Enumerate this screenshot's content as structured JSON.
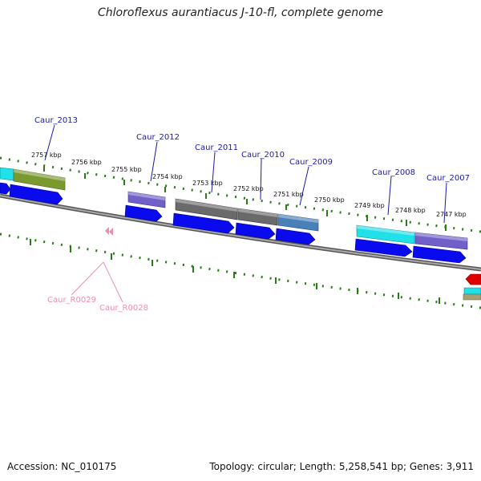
{
  "title": "Chloroflexus aurantiacus J-10-fl, complete genome",
  "footer": {
    "accession": "Accession: NC_010175",
    "topology": "Topology: circular; Length: 5,258,541 bp; Genes: 3,911"
  },
  "kbp_labels": [
    "2757 kbp",
    "2756 kbp",
    "2755 kbp",
    "2754 kbp",
    "2753 kbp",
    "2752 kbp",
    "2751 kbp",
    "2750 kbp",
    "2749 kbp",
    "2748 kbp",
    "2747 kbp"
  ],
  "gene_labels": [
    "Caur_2013",
    "Caur_2012",
    "Caur_2011",
    "Caur_2010",
    "Caur_2009",
    "Caur_2008",
    "Caur_2007"
  ],
  "rna_labels": [
    "Caur_R0029",
    "Caur_R0028"
  ],
  "colors": {
    "cds": "#0a0aee",
    "label_gene": "#1a1aa8",
    "label_rna": "#f08cb4",
    "tick": "#2a7a1a",
    "backbone": "#808080",
    "olive": "#7a9a30",
    "cyan": "#20e0e8",
    "purple": "#7060c8",
    "gray": "#6a6a6a",
    "steel": "#4a80b8",
    "red": "#e00000",
    "pink": "#f08cb4"
  }
}
